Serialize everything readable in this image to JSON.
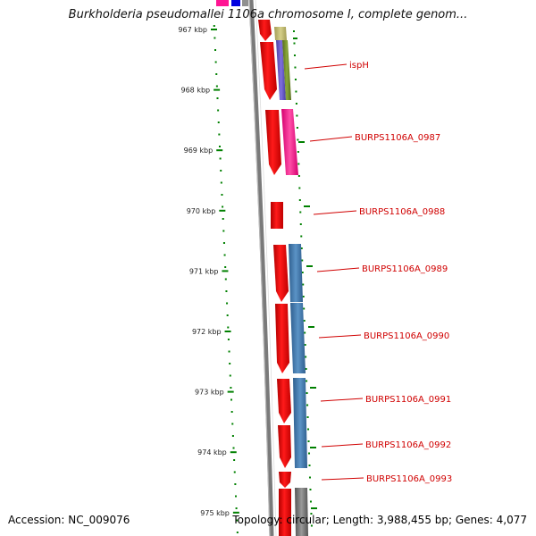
{
  "title": "Burkholderia pseudomallei 1106a chromosome I, complete genom...",
  "footer": {
    "accession": "Accession: NC_009076",
    "summary": "Topology: circular; Length: 3,988,455 bp; Genes: 4,077"
  },
  "ticks": [
    "967 kbp",
    "968 kbp",
    "969 kbp",
    "970 kbp",
    "971 kbp",
    "972 kbp",
    "973 kbp",
    "974 kbp",
    "975 kbp"
  ],
  "genes": [
    {
      "label": "ispH"
    },
    {
      "label": "BURPS1106A_0987"
    },
    {
      "label": "BURPS1106A_0988"
    },
    {
      "label": "BURPS1106A_0989"
    },
    {
      "label": "BURPS1106A_0990"
    },
    {
      "label": "BURPS1106A_0991"
    },
    {
      "label": "BURPS1106A_0992"
    },
    {
      "label": "BURPS1106A_0993"
    }
  ],
  "colors": {
    "gene": "#ff0000",
    "backbone": "#808080",
    "tick": "#008000",
    "label": "#d00000",
    "track_blue": "#4682b4",
    "track_pink": "#ff1493",
    "track_olive": "#6b8e23",
    "track_purple": "#6a5acd",
    "track_khaki": "#bdb76b",
    "track_gray": "#707070"
  }
}
